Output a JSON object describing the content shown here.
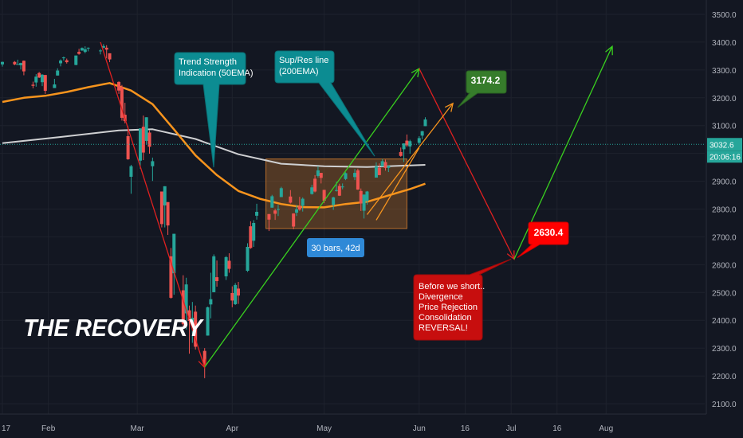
{
  "chart_data": {
    "type": "candlestick",
    "title": "THE RECOVERY",
    "y_axis": {
      "ticks": [
        "3500.0",
        "3400.0",
        "3300.0",
        "3200.0",
        "3100.0",
        "3000.0",
        "2900.0",
        "2800.0",
        "2700.0",
        "2600.0",
        "2500.0",
        "2400.0",
        "2300.0",
        "2200.0",
        "2100.0"
      ],
      "tick_values": [
        3500,
        3400,
        3300,
        3200,
        3100,
        3000,
        2900,
        2800,
        2700,
        2600,
        2500,
        2400,
        2300,
        2200,
        2100
      ],
      "range": [
        2055,
        3545
      ]
    },
    "x_axis": {
      "ticks": [
        "17",
        "Feb",
        "Mar",
        "Apr",
        "May",
        "Jun",
        "16",
        "Jul",
        "16",
        "Aug"
      ],
      "range_dates": [
        "2020-01-17",
        "2020-08-18"
      ]
    },
    "current_price": {
      "label": "3032.6",
      "value": 3032.6
    },
    "countdown": "20:06:16",
    "price_tags": [
      {
        "label": "3174.2",
        "value": 3174.2,
        "color": "#367c2b"
      },
      {
        "label": "2630.4",
        "value": 2630.4,
        "color": "#ff0000"
      }
    ],
    "callouts": {
      "trend_strength": [
        "Trend Strength",
        "Indication (50EMA)"
      ],
      "sup_res": [
        "Sup/Res line",
        "(200EMA)"
      ],
      "range_box": "30 bars, 42d",
      "before_short": [
        "Before we short..",
        "Divergence",
        "Price Rejection",
        "Consolidation",
        "REVERSAL!"
      ]
    },
    "candles": [
      [
        "2020-01-17",
        3320,
        3330,
        3312,
        3329
      ],
      [
        "2020-01-21",
        3329,
        3332,
        3317,
        3320
      ],
      [
        "2020-01-22",
        3320,
        3337,
        3320,
        3321
      ],
      [
        "2020-01-23",
        3317,
        3326,
        3302,
        3325
      ],
      [
        "2020-01-24",
        3333,
        3334,
        3281,
        3295
      ],
      [
        "2020-01-27",
        3247,
        3258,
        3234,
        3243
      ],
      [
        "2020-01-28",
        3255,
        3285,
        3240,
        3276
      ],
      [
        "2020-01-29",
        3289,
        3293,
        3271,
        3273
      ],
      [
        "2020-01-30",
        3256,
        3285,
        3242,
        3283
      ],
      [
        "2020-01-31",
        3282,
        3282,
        3214,
        3225
      ],
      [
        "2020-02-03",
        3235,
        3268,
        3235,
        3248
      ],
      [
        "2020-02-04",
        3280,
        3306,
        3280,
        3298
      ],
      [
        "2020-02-05",
        3324,
        3338,
        3313,
        3334
      ],
      [
        "2020-02-06",
        3344,
        3348,
        3334,
        3345
      ],
      [
        "2020-02-07",
        3335,
        3341,
        3323,
        3328
      ],
      [
        "2020-02-10",
        3318,
        3352,
        3317,
        3352
      ],
      [
        "2020-02-11",
        3365,
        3376,
        3355,
        3358
      ],
      [
        "2020-02-12",
        3370,
        3381,
        3369,
        3379
      ],
      [
        "2020-02-13",
        3365,
        3385,
        3360,
        3374
      ],
      [
        "2020-02-14",
        3378,
        3381,
        3367,
        3380
      ],
      [
        "2020-02-18",
        3370,
        3375,
        3356,
        3370
      ],
      [
        "2020-02-19",
        3380,
        3393,
        3378,
        3386
      ],
      [
        "2020-02-20",
        3380,
        3389,
        3342,
        3373
      ],
      [
        "2020-02-21",
        3360,
        3360,
        3328,
        3338
      ],
      [
        "2020-02-24",
        3257,
        3259,
        3214,
        3226
      ],
      [
        "2020-02-25",
        3238,
        3246,
        3118,
        3128
      ],
      [
        "2020-02-26",
        3139,
        3182,
        3108,
        3116
      ],
      [
        "2020-02-27",
        3062,
        3097,
        2977,
        2979
      ],
      [
        "2020-02-28",
        2916,
        2959,
        2855,
        2954
      ],
      [
        "2020-03-02",
        2974,
        3090,
        2945,
        3090
      ],
      [
        "2020-03-03",
        3096,
        3136,
        2976,
        3003
      ],
      [
        "2020-03-04",
        3045,
        3130,
        3034,
        3130
      ],
      [
        "2020-03-05",
        3075,
        3083,
        2999,
        3024
      ],
      [
        "2020-03-06",
        2954,
        2985,
        2901,
        2972
      ],
      [
        "2020-03-09",
        2863,
        2863,
        2734,
        2746
      ],
      [
        "2020-03-10",
        2813,
        2882,
        2734,
        2882
      ],
      [
        "2020-03-11",
        2825,
        2825,
        2707,
        2741
      ],
      [
        "2020-03-12",
        2630,
        2660,
        2478,
        2481
      ],
      [
        "2020-03-13",
        2569,
        2711,
        2492,
        2711
      ],
      [
        "2020-03-16",
        2508,
        2562,
        2380,
        2386
      ],
      [
        "2020-03-17",
        2425,
        2553,
        2367,
        2529
      ],
      [
        "2020-03-18",
        2436,
        2453,
        2280,
        2398
      ],
      [
        "2020-03-19",
        2393,
        2466,
        2319,
        2409
      ],
      [
        "2020-03-20",
        2431,
        2453,
        2295,
        2305
      ],
      [
        "2020-03-23",
        2290,
        2300,
        2192,
        2237
      ],
      [
        "2020-03-24",
        2345,
        2449,
        2345,
        2447
      ],
      [
        "2020-03-25",
        2457,
        2571,
        2407,
        2476
      ],
      [
        "2020-03-26",
        2501,
        2637,
        2501,
        2630
      ],
      [
        "2020-03-27",
        2555,
        2615,
        2521,
        2541
      ],
      [
        "2020-03-30",
        2558,
        2631,
        2545,
        2627
      ],
      [
        "2020-03-31",
        2614,
        2641,
        2571,
        2585
      ],
      [
        "2020-04-01",
        2498,
        2522,
        2447,
        2471
      ],
      [
        "2020-04-02",
        2458,
        2534,
        2455,
        2527
      ],
      [
        "2020-04-03",
        2514,
        2538,
        2459,
        2489
      ],
      [
        "2020-04-06",
        2578,
        2677,
        2574,
        2664
      ],
      [
        "2020-04-07",
        2738,
        2756,
        2657,
        2660
      ],
      [
        "2020-04-08",
        2686,
        2760,
        2664,
        2750
      ],
      [
        "2020-04-09",
        2776,
        2819,
        2762,
        2790
      ],
      [
        "2020-04-13",
        2782,
        2782,
        2721,
        2762
      ],
      [
        "2020-04-14",
        2805,
        2851,
        2805,
        2846
      ],
      [
        "2020-04-15",
        2795,
        2801,
        2761,
        2783
      ],
      [
        "2020-04-16",
        2800,
        2815,
        2775,
        2800
      ],
      [
        "2020-04-17",
        2843,
        2880,
        2843,
        2875
      ],
      [
        "2020-04-20",
        2845,
        2868,
        2820,
        2823
      ],
      [
        "2020-04-21",
        2784,
        2785,
        2727,
        2737
      ],
      [
        "2020-04-22",
        2787,
        2815,
        2775,
        2799
      ],
      [
        "2020-04-23",
        2810,
        2844,
        2794,
        2798
      ],
      [
        "2020-04-24",
        2812,
        2842,
        2791,
        2837
      ],
      [
        "2020-04-27",
        2854,
        2887,
        2852,
        2878
      ],
      [
        "2020-04-28",
        2909,
        2922,
        2860,
        2863
      ],
      [
        "2020-04-29",
        2919,
        2954,
        2913,
        2939
      ],
      [
        "2020-04-30",
        2930,
        2930,
        2892,
        2912
      ],
      [
        "2020-05-01",
        2869,
        2869,
        2821,
        2830
      ],
      [
        "2020-05-04",
        2815,
        2844,
        2797,
        2842
      ],
      [
        "2020-05-05",
        2868,
        2898,
        2863,
        2868
      ],
      [
        "2020-05-06",
        2883,
        2891,
        2847,
        2848
      ],
      [
        "2020-05-07",
        2879,
        2892,
        2871,
        2881
      ],
      [
        "2020-05-08",
        2908,
        2932,
        2904,
        2929
      ],
      [
        "2020-05-11",
        2915,
        2944,
        2904,
        2930
      ],
      [
        "2020-05-12",
        2939,
        2945,
        2869,
        2870
      ],
      [
        "2020-05-13",
        2865,
        2874,
        2793,
        2820
      ],
      [
        "2020-05-14",
        2794,
        2852,
        2766,
        2852
      ],
      [
        "2020-05-15",
        2829,
        2865,
        2816,
        2863
      ],
      [
        "2020-05-18",
        2913,
        2968,
        2913,
        2953
      ],
      [
        "2020-05-19",
        2948,
        2964,
        2922,
        2922
      ],
      [
        "2020-05-20",
        2953,
        2980,
        2953,
        2972
      ],
      [
        "2020-05-21",
        2969,
        2978,
        2938,
        2948
      ],
      [
        "2020-05-22",
        2948,
        2956,
        2933,
        2955
      ],
      [
        "2020-05-26",
        3005,
        3021,
        2988,
        2991
      ],
      [
        "2020-05-27",
        3015,
        3036,
        2969,
        3036
      ],
      [
        "2020-05-28",
        3046,
        3068,
        3023,
        3029
      ],
      [
        "2020-05-29",
        3025,
        3049,
        2999,
        3044
      ],
      [
        "2020-06-01",
        3038,
        3062,
        3031,
        3055
      ],
      [
        "2020-06-02",
        3064,
        3081,
        3051,
        3080
      ],
      [
        "2020-06-03",
        3098,
        3130,
        3098,
        3122
      ]
    ],
    "ema50": [
      [
        "2020-01-17",
        3185
      ],
      [
        "2020-01-24",
        3200
      ],
      [
        "2020-01-31",
        3207
      ],
      [
        "2020-02-07",
        3221
      ],
      [
        "2020-02-14",
        3238
      ],
      [
        "2020-02-21",
        3253
      ],
      [
        "2020-02-28",
        3226
      ],
      [
        "2020-03-06",
        3177
      ],
      [
        "2020-03-13",
        3086
      ],
      [
        "2020-03-20",
        2993
      ],
      [
        "2020-03-27",
        2922
      ],
      [
        "2020-04-03",
        2865
      ],
      [
        "2020-04-10",
        2837
      ],
      [
        "2020-04-17",
        2818
      ],
      [
        "2020-04-24",
        2807
      ],
      [
        "2020-05-01",
        2806
      ],
      [
        "2020-05-08",
        2818
      ],
      [
        "2020-05-15",
        2826
      ],
      [
        "2020-05-22",
        2849
      ],
      [
        "2020-05-29",
        2872
      ],
      [
        "2020-06-03",
        2891
      ]
    ],
    "ema200": [
      [
        "2020-01-17",
        3037
      ],
      [
        "2020-02-05",
        3059
      ],
      [
        "2020-02-24",
        3083
      ],
      [
        "2020-03-06",
        3087
      ],
      [
        "2020-03-20",
        3052
      ],
      [
        "2020-04-03",
        2997
      ],
      [
        "2020-04-17",
        2963
      ],
      [
        "2020-05-01",
        2954
      ],
      [
        "2020-05-15",
        2951
      ],
      [
        "2020-05-29",
        2957
      ],
      [
        "2020-06-03",
        2959
      ]
    ],
    "colors": {
      "up": "#26a69a",
      "down": "#ef5350",
      "ema50": "#f7941d",
      "ema200": "#cfd0d2",
      "green_line": "#39d01f",
      "red_line": "#e02020",
      "orange_line": "#f7941d",
      "range_box": "#b86f2b",
      "callout_teal": "#0c8c92",
      "callout_blue": "#2f89d7",
      "callout_red": "#c70e0e"
    }
  }
}
